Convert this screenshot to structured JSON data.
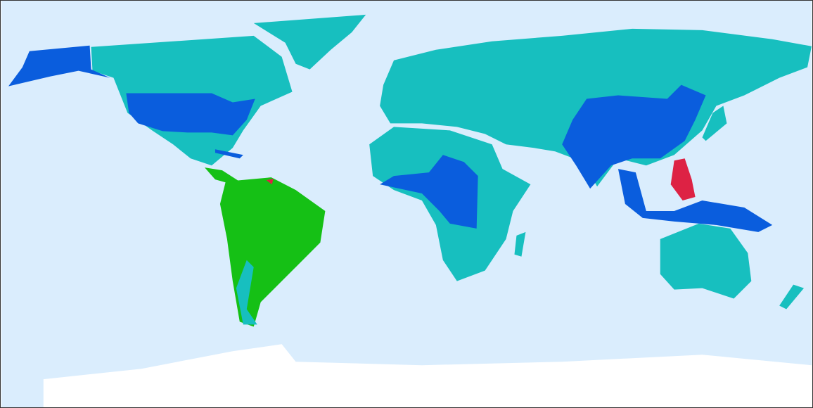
{
  "map": {
    "projection": "equirectangular",
    "colors": {
      "ocean": "#daedfd",
      "teal": "#17bfbf",
      "blue": "#0a5ddd",
      "green": "#15c015",
      "red": "#dd2244",
      "ice": "#ffffff"
    }
  }
}
